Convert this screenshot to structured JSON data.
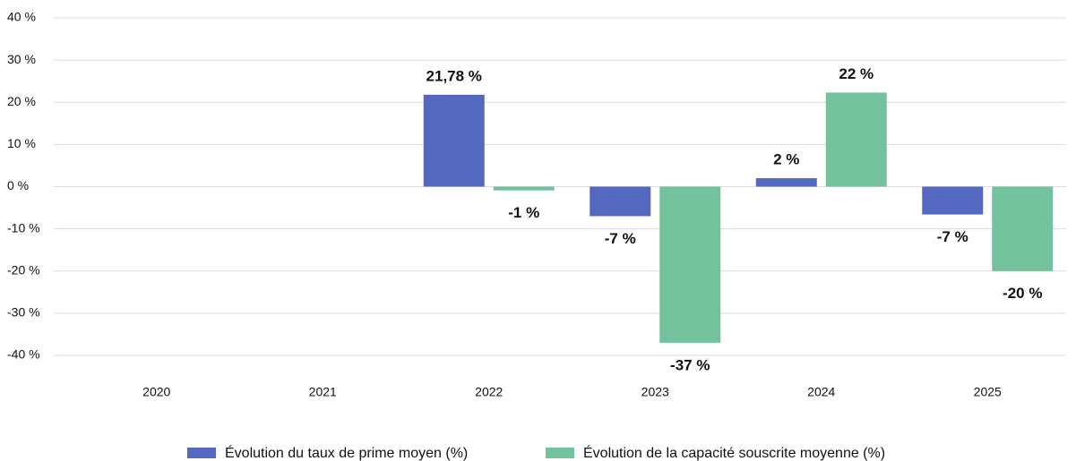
{
  "chart_data": {
    "type": "bar",
    "categories": [
      "2020",
      "2021",
      "2022",
      "2023",
      "2024",
      "2025"
    ],
    "series": [
      {
        "name": "Évolution du taux de prime moyen (%)",
        "color": "#5468c0",
        "values": [
          0,
          0,
          21.78,
          -7,
          2,
          -6.6
        ],
        "value_labels": [
          null,
          null,
          "21,78 %",
          "-7 %",
          "2 %",
          "-7 %"
        ]
      },
      {
        "name": "Évolution de la capacité souscrite moyenne (%)",
        "color": "#72c29e",
        "values": [
          0,
          0,
          -0.9,
          -37,
          22.3,
          -20
        ],
        "value_labels": [
          null,
          null,
          "-1 %",
          "-37 %",
          "22 %",
          "-20 %"
        ]
      }
    ],
    "ylim": [
      -40,
      40
    ],
    "yticks": [
      {
        "value": -40,
        "label": "-40 %"
      },
      {
        "value": -30,
        "label": "-30 %"
      },
      {
        "value": -20,
        "label": "-20 %"
      },
      {
        "value": -10,
        "label": "-10 %"
      },
      {
        "value": 0,
        "label": "0 %"
      },
      {
        "value": 10,
        "label": "10 %"
      },
      {
        "value": 20,
        "label": "20 %"
      },
      {
        "value": 30,
        "label": "30 %"
      },
      {
        "value": 40,
        "label": "40 %"
      }
    ],
    "grid": true,
    "legend": "bottom"
  }
}
